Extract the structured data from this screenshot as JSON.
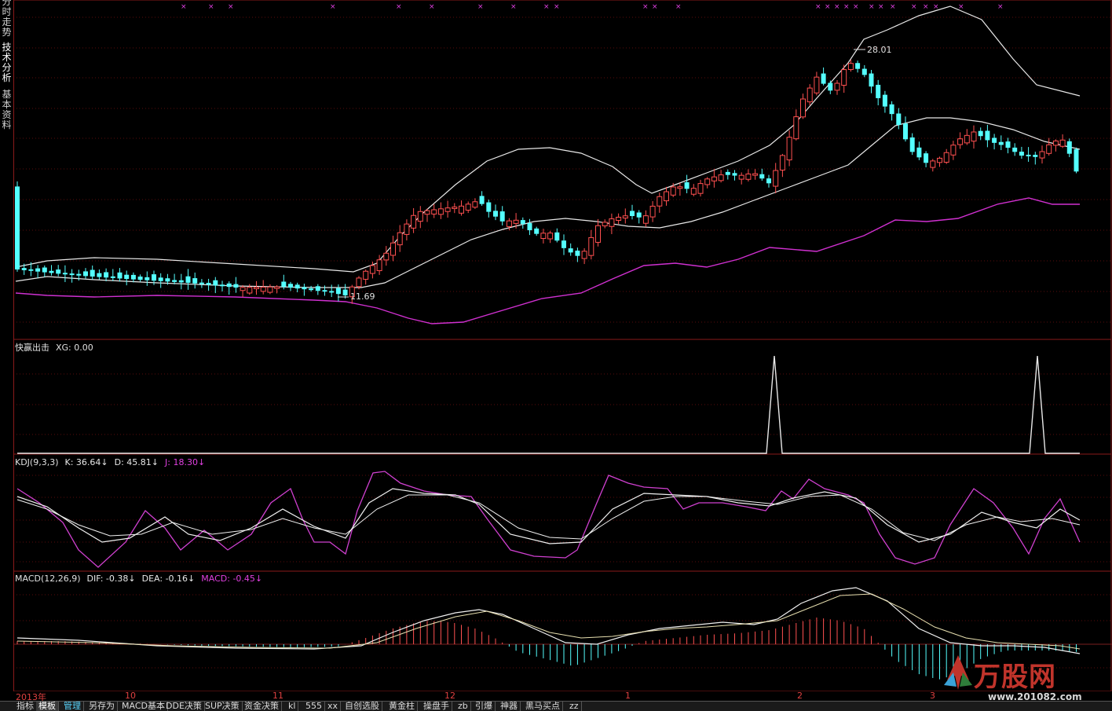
{
  "sidebar": {
    "tabs": [
      {
        "label": "分时走势"
      },
      {
        "label": "技术分析"
      },
      {
        "label": "基本资料"
      }
    ]
  },
  "main_panel": {
    "annotations": {
      "high": "28.01",
      "low": "11.69"
    }
  },
  "panels": {
    "xg": {
      "name": "快赢出击",
      "items": [
        {
          "label": "XG: 0.00"
        }
      ]
    },
    "kdj": {
      "name": "KDJ(9,3,3)",
      "items": [
        {
          "label": "K: 36.64↓",
          "color": "#e8e8e8"
        },
        {
          "label": "D: 45.81↓",
          "color": "#e8e8e8"
        },
        {
          "label": "J: 18.30↓",
          "color": "#e040e0"
        }
      ]
    },
    "macd": {
      "name": "MACD(12,26,9)",
      "items": [
        {
          "label": "DIF: -0.38↓",
          "color": "#e8e8e8"
        },
        {
          "label": "DEA: -0.16↓",
          "color": "#e8e8e8"
        },
        {
          "label": "MACD: -0.45↓",
          "color": "#e040e0"
        }
      ]
    }
  },
  "time_axis": [
    "2013年",
    "10",
    "11",
    "12",
    "1",
    "2",
    "3"
  ],
  "bottom_tabs": [
    "指标",
    "模板",
    "管理",
    "另存为",
    "MACD基本",
    "DDE决策",
    "SUP决策",
    "资金决策",
    "kl",
    "555",
    "xx",
    "自创选股",
    "黄金柱",
    "操盘手",
    "zb",
    "引爆",
    "神器",
    "黑马买点",
    "zz"
  ],
  "logo": {
    "name": "万股网",
    "url": "www.201082.com"
  },
  "colors": {
    "up": "#ff5050",
    "down": "#54ffff",
    "boll_mid": "#e8e8e8",
    "boll_low": "#d030d0",
    "grid": "#8a1a1a"
  }
}
